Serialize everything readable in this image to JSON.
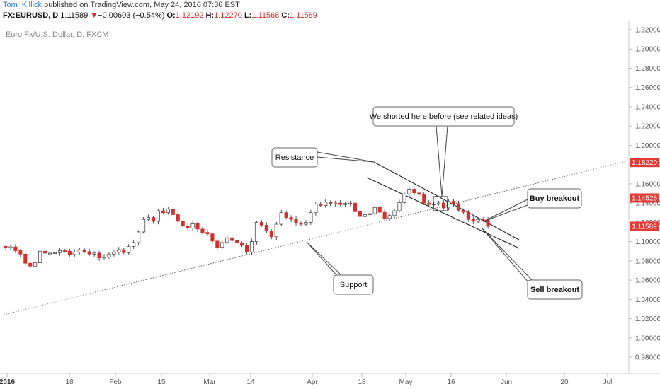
{
  "header": {
    "author": "Tom_Killick",
    "published": " published on TradingView.com, May 24, 2016 07:36 EST",
    "symbol": "FX:EURUSD, D",
    "last": "1.11589",
    "change_arrow": "▼",
    "change": "−0.00603 (−0.54%)",
    "o_label": "O:",
    "o_value": "1.12192",
    "h_label": "H:",
    "h_value": "1.12270",
    "l_label": "L:",
    "l_value": "1.11568",
    "c_label": "C:",
    "c_value": "1.11589"
  },
  "chart_data": {
    "type": "candlestick",
    "symbol_label": "Euro Fx/U.S. Dollar, D, FXCM",
    "y_ticks": [
      "0.98000",
      "1.00000",
      "1.02000",
      "1.04000",
      "1.06000",
      "1.08000",
      "1.10000",
      "1.12000",
      "1.14000",
      "1.16000",
      "1.18000",
      "1.20000",
      "1.22000",
      "1.24000",
      "1.26000",
      "1.28000",
      "1.30000",
      "1.32000"
    ],
    "ylim": [
      0.97,
      1.325
    ],
    "x_ticks": [
      "2016",
      "18",
      "Feb",
      "15",
      "Mar",
      "14",
      "Apr",
      "18",
      "May",
      "16",
      "Jun",
      "20",
      "Jul"
    ],
    "price_tags": [
      {
        "value": 1.1822,
        "label": "1.18220",
        "color": "#e53935"
      },
      {
        "value": 1.14525,
        "label": "1.14525",
        "color": "#e53935"
      },
      {
        "value": 1.11589,
        "label": "1.11589",
        "color": "#e53935"
      }
    ],
    "closes": [
      1.0935,
      1.0945,
      1.0905,
      1.087,
      1.0775,
      1.0745,
      1.078,
      1.09,
      1.088,
      1.088,
      1.0885,
      1.0905,
      1.09,
      1.0865,
      1.089,
      1.0915,
      1.0895,
      1.087,
      1.088,
      1.083,
      1.084,
      1.087,
      1.089,
      1.0915,
      1.0885,
      1.095,
      1.099,
      1.11,
      1.123,
      1.125,
      1.121,
      1.132,
      1.13,
      1.134,
      1.128,
      1.121,
      1.116,
      1.114,
      1.1185,
      1.113,
      1.1095,
      1.108,
      1.1005,
      1.094,
      1.099,
      1.104,
      1.101,
      1.0985,
      1.096,
      1.089,
      1.1,
      1.12,
      1.117,
      1.111,
      1.105,
      1.118,
      1.13,
      1.125,
      1.123,
      1.119,
      1.118,
      1.12,
      1.13,
      1.139,
      1.1375,
      1.141,
      1.1395,
      1.14,
      1.1385,
      1.1395,
      1.14,
      1.131,
      1.126,
      1.128,
      1.129,
      1.1355,
      1.1305,
      1.124,
      1.127,
      1.132,
      1.1405,
      1.1495,
      1.1545,
      1.1505,
      1.149,
      1.14,
      1.1385,
      1.139,
      1.14,
      1.135,
      1.142,
      1.1395,
      1.1325,
      1.1305,
      1.123,
      1.121,
      1.123,
      1.1225,
      1.1159
    ],
    "annotations": [
      {
        "text": "Resistance"
      },
      {
        "text": "We shorted here before (see related ideas)"
      },
      {
        "text": "Buy breakout"
      },
      {
        "text": "Support"
      },
      {
        "text": "Sell breakout"
      }
    ],
    "colors": {
      "up": "#ffffff",
      "down": "#d32f2f",
      "outline": "#333333"
    }
  }
}
